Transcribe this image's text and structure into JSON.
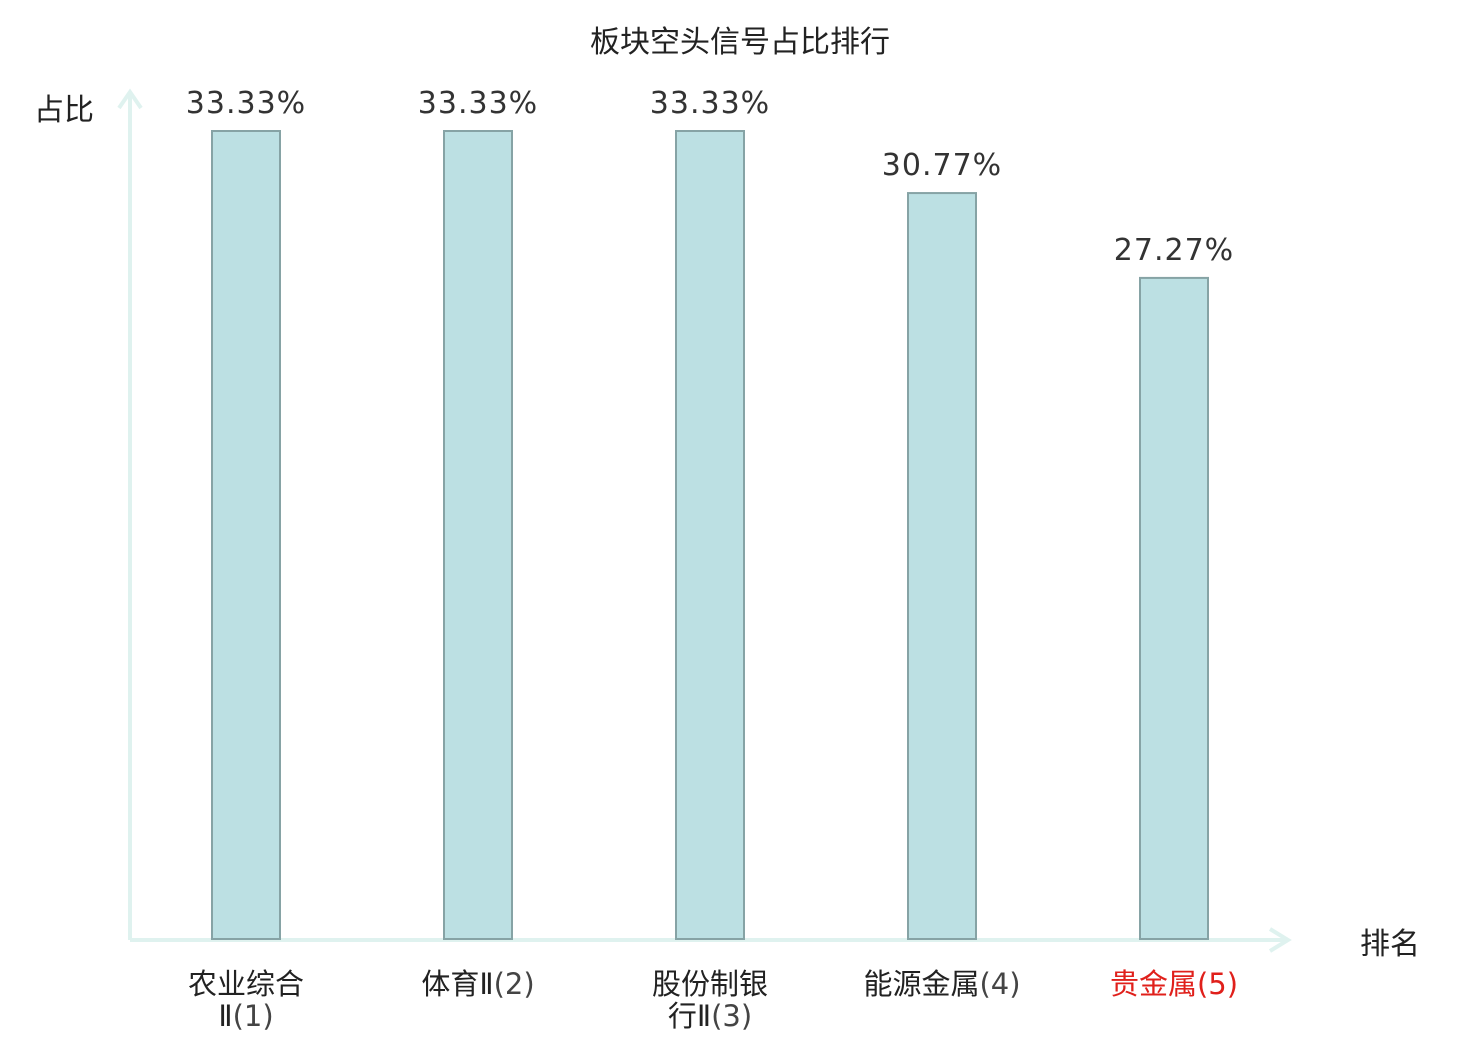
{
  "chart_data": {
    "type": "bar",
    "title": "板块空头信号占比排行",
    "ylabel": "占比",
    "xlabel": "排名",
    "ylim": [
      0,
      0.3333
    ],
    "grid": false,
    "legend": "none",
    "categories": [
      {
        "lines": [
          "农业综合",
          "Ⅱ"
        ],
        "rank": "(1)",
        "highlight": false
      },
      {
        "lines": [
          "体育Ⅱ"
        ],
        "rank": "(2)",
        "highlight": false
      },
      {
        "lines": [
          "股份制银",
          "行Ⅱ"
        ],
        "rank": "(3)",
        "highlight": false
      },
      {
        "lines": [
          "能源金属"
        ],
        "rank": "(4)",
        "highlight": false
      },
      {
        "lines": [
          "贵金属"
        ],
        "rank": "(5)",
        "highlight": true
      }
    ],
    "values": [
      0.3333,
      0.3333,
      0.3333,
      0.3077,
      0.2727
    ],
    "value_labels": [
      "33.33%",
      "33.33%",
      "33.33%",
      "30.77%",
      "27.27%"
    ]
  },
  "colors": {
    "bar_fill": "#bce0e3",
    "bar_stroke": "#86a3a5",
    "axis": "#dff2ef",
    "highlight": "#e0201b"
  }
}
